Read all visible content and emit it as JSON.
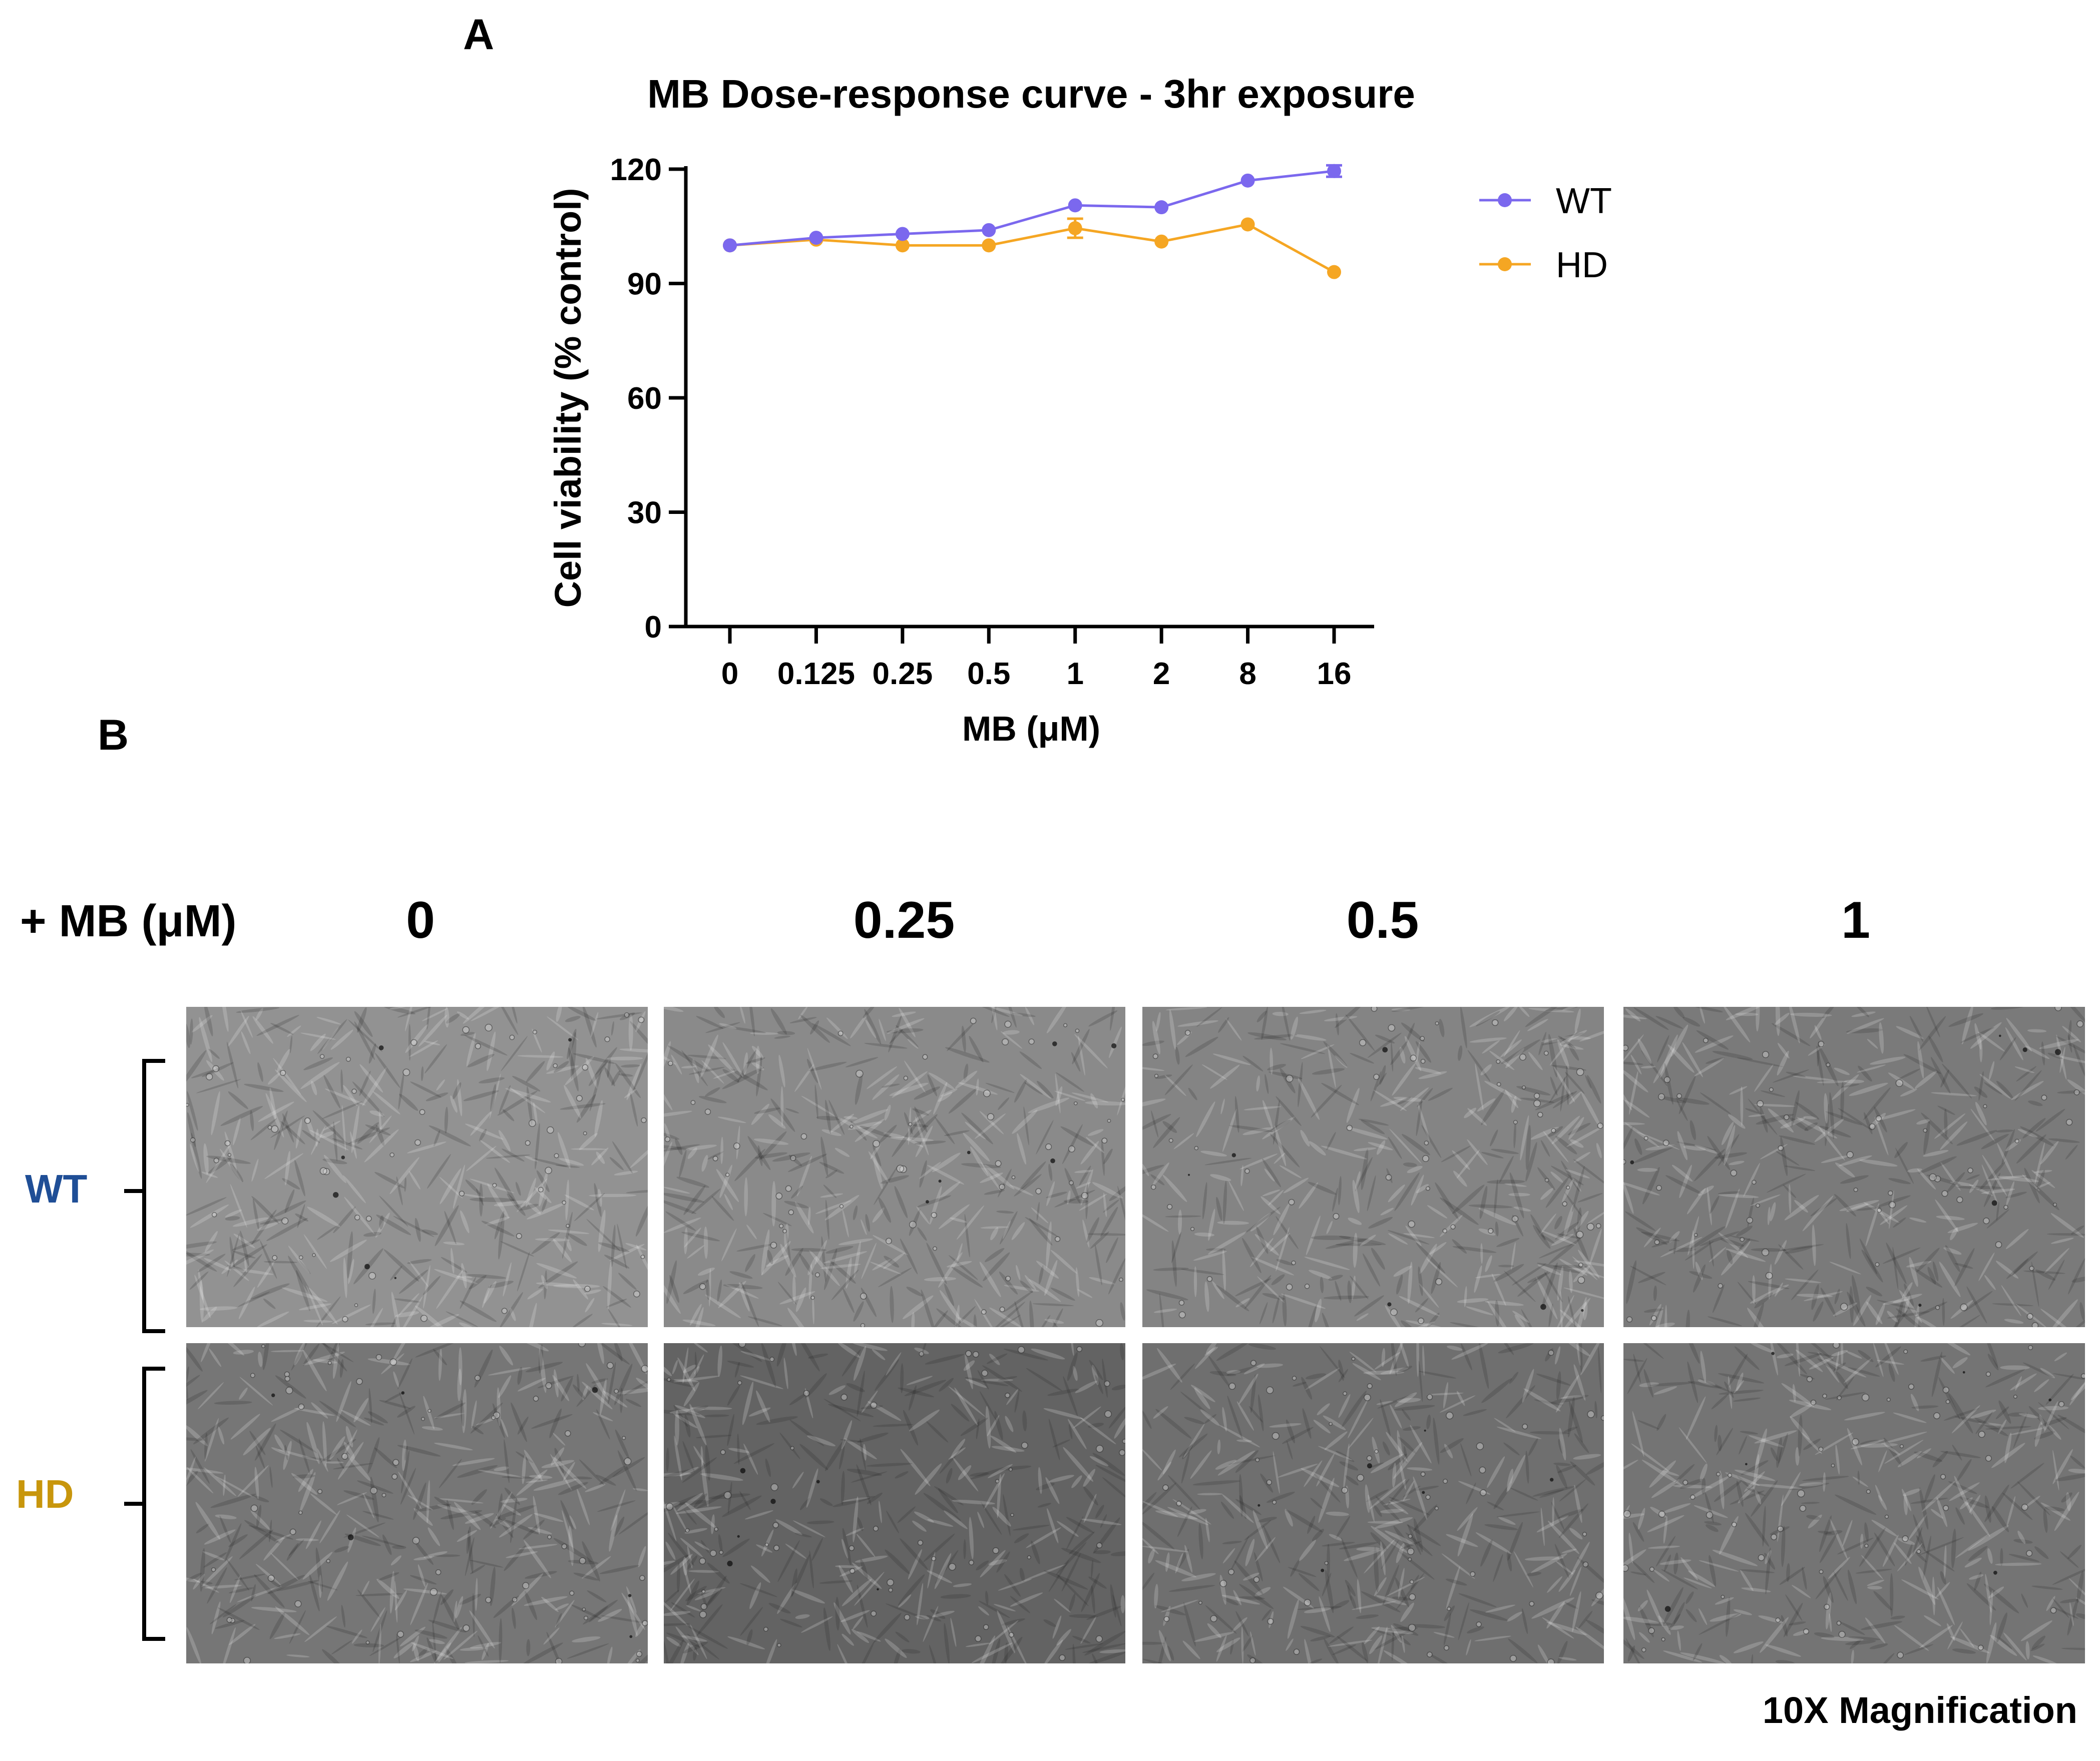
{
  "panel_a_label": "A",
  "panel_b_label": "B",
  "chart_data": {
    "type": "line",
    "title": "MB Dose-response curve - 3hr exposure",
    "xlabel": "MB (μM)",
    "ylabel": "Cell viability (% control)",
    "categories": [
      "0",
      "0.125",
      "0.25",
      "0.5",
      "1",
      "2",
      "8",
      "16"
    ],
    "ylim": [
      0,
      120
    ],
    "yticks": [
      0,
      30,
      60,
      90,
      120
    ],
    "grid": false,
    "legend_position": "right",
    "series": [
      {
        "name": "WT",
        "color": "#7b68ee",
        "values": [
          100,
          102,
          103,
          104,
          110.5,
          110,
          117,
          119.5
        ],
        "err": [
          0,
          0,
          0,
          0,
          0,
          0,
          0,
          1.5
        ]
      },
      {
        "name": "HD",
        "color": "#f5a623",
        "values": [
          100,
          101.5,
          100,
          100,
          104.5,
          101,
          105.5,
          93
        ],
        "err": [
          0,
          0,
          0,
          0,
          2.5,
          0,
          0,
          0
        ]
      }
    ]
  },
  "panel_b": {
    "treatment_label": "+ MB (μM)",
    "concentrations": [
      "0",
      "0.25",
      "0.5",
      "1"
    ],
    "rows": [
      {
        "label": "WT",
        "color": "#1f4e96"
      },
      {
        "label": "HD",
        "color": "#c8960c"
      }
    ],
    "magnification": "10X Magnification"
  }
}
